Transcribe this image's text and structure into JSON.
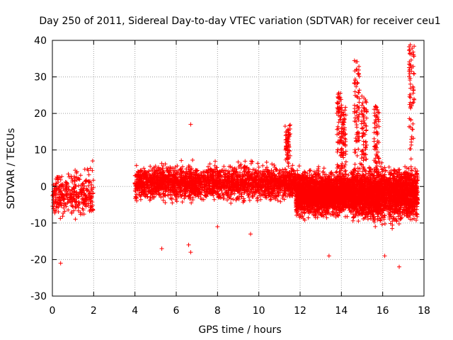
{
  "chart_data": {
    "type": "scatter",
    "title": "Day 250 of 2011, Sidereal Day-to-day VTEC variation (SDTVAR) for receiver ceu1",
    "xlabel": "GPS time / hours",
    "ylabel": "SDTVAR / TECUs",
    "xlim": [
      0,
      18
    ],
    "ylim": [
      -30,
      40
    ],
    "xticks": [
      "0",
      "2",
      "4",
      "6",
      "8",
      "10",
      "12",
      "14",
      "16",
      "18"
    ],
    "yticks": [
      "-30",
      "-20",
      "-10",
      "0",
      "10",
      "20",
      "30",
      "40"
    ],
    "grid": true,
    "marker": "+",
    "colors": {
      "series": "#ff0000",
      "grid": "#a0a0a0",
      "axis": "#000000"
    },
    "data_gap": [
      2.0,
      4.0
    ],
    "segments": [
      {
        "x_range": [
          0.0,
          2.0
        ],
        "y_center": -2,
        "y_spread": 5,
        "density": "moderate"
      },
      {
        "x_range": [
          4.0,
          11.8
        ],
        "y_center": 1,
        "y_spread": 4,
        "density": "very high"
      },
      {
        "x_range": [
          11.8,
          14.5
        ],
        "y_center": -2,
        "y_spread": 5,
        "density": "very high"
      },
      {
        "x_range": [
          14.5,
          17.7
        ],
        "y_center": -2,
        "y_spread": 6,
        "density": "very high"
      }
    ],
    "excursions": [
      {
        "x": 11.4,
        "peak_y": 16
      },
      {
        "x": 13.9,
        "peak_y": 25
      },
      {
        "x": 14.1,
        "peak_y": 21
      },
      {
        "x": 14.75,
        "peak_y": 34
      },
      {
        "x": 15.1,
        "peak_y": 24
      },
      {
        "x": 15.7,
        "peak_y": 22
      },
      {
        "x": 17.4,
        "peak_y": 39
      }
    ],
    "outliers": [
      {
        "x": 0.4,
        "y": -21
      },
      {
        "x": 5.3,
        "y": -17
      },
      {
        "x": 6.6,
        "y": -16
      },
      {
        "x": 6.7,
        "y": -18
      },
      {
        "x": 6.7,
        "y": 17
      },
      {
        "x": 9.6,
        "y": -13
      },
      {
        "x": 13.4,
        "y": -19
      },
      {
        "x": 16.8,
        "y": -22
      },
      {
        "x": 16.1,
        "y": -19
      },
      {
        "x": 1.95,
        "y": 7
      },
      {
        "x": 4.0,
        "y": 1
      },
      {
        "x": 8.0,
        "y": -11
      }
    ]
  }
}
